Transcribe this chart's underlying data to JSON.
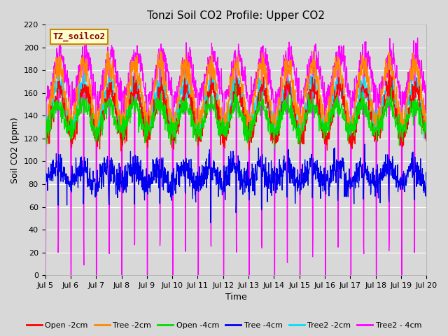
{
  "title": "Tonzi Soil CO2 Profile: Upper CO2",
  "xlabel": "Time",
  "ylabel": "Soil CO2 (ppm)",
  "ylim": [
    0,
    220
  ],
  "yticks": [
    0,
    20,
    40,
    60,
    80,
    100,
    120,
    140,
    160,
    180,
    200,
    220
  ],
  "date_start": 5,
  "n_days": 15,
  "pts_per_day": 96,
  "legend_label": "TZ_soilco2",
  "series": [
    {
      "label": "Open -2cm",
      "color": "#ff0000",
      "base": 142,
      "amp": 22,
      "phase": 0.55,
      "noise": 5,
      "spike_amp": 0,
      "spike_freq": 0
    },
    {
      "label": "Tree -2cm",
      "color": "#ff8800",
      "base": 160,
      "amp": 25,
      "phase": 0.52,
      "noise": 6,
      "spike_amp": 0,
      "spike_freq": 0
    },
    {
      "label": "Open -4cm",
      "color": "#00dd00",
      "base": 138,
      "amp": 12,
      "phase": 0.5,
      "noise": 5,
      "spike_amp": 0,
      "spike_freq": 0
    },
    {
      "label": "Tree -4cm",
      "color": "#0000ee",
      "base": 88,
      "amp": 8,
      "phase": 0.48,
      "noise": 7,
      "spike_amp": 30,
      "spike_freq": 1
    },
    {
      "label": "Tree2 -2cm",
      "color": "#00ddff",
      "base": 150,
      "amp": 18,
      "phase": 0.53,
      "noise": 5,
      "spike_amp": 0,
      "spike_freq": 0
    },
    {
      "label": "Tree2 - 4cm",
      "color": "#ff00ff",
      "base": 175,
      "amp": 20,
      "phase": 0.58,
      "noise": 6,
      "spike_amp": 170,
      "spike_freq": 2
    }
  ],
  "background_color": "#d8d8d8",
  "plot_bg_color": "#d8d8d8",
  "grid_color": "#ffffff",
  "title_fontsize": 11,
  "axis_fontsize": 9,
  "tick_fontsize": 8,
  "legend_fontsize": 8,
  "linewidth": 0.9
}
